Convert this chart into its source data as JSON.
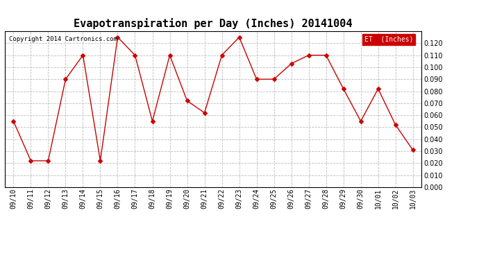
{
  "title": "Evapotranspiration per Day (Inches) 20141004",
  "copyright": "Copyright 2014 Cartronics.com",
  "legend_label": "ET  (Inches)",
  "dates": [
    "09/10",
    "09/11",
    "09/12",
    "09/13",
    "09/14",
    "09/15",
    "09/16",
    "09/17",
    "09/18",
    "09/19",
    "09/20",
    "09/21",
    "09/22",
    "09/23",
    "09/24",
    "09/25",
    "09/26",
    "09/27",
    "09/28",
    "09/29",
    "09/30",
    "10/01",
    "10/02",
    "10/03"
  ],
  "values": [
    0.055,
    0.022,
    0.022,
    0.09,
    0.11,
    0.022,
    0.125,
    0.11,
    0.055,
    0.11,
    0.072,
    0.062,
    0.11,
    0.125,
    0.09,
    0.09,
    0.103,
    0.11,
    0.11,
    0.082,
    0.055,
    0.082,
    0.052,
    0.031
  ],
  "ylim": [
    0.0,
    0.13
  ],
  "yticks": [
    0.0,
    0.01,
    0.02,
    0.03,
    0.04,
    0.05,
    0.06,
    0.07,
    0.08,
    0.09,
    0.1,
    0.11,
    0.12
  ],
  "line_color": "#cc0000",
  "marker": "D",
  "marker_size": 3,
  "grid_color": "#bbbbbb",
  "bg_color": "#ffffff",
  "title_fontsize": 11,
  "tick_fontsize": 7,
  "copyright_fontsize": 6.5,
  "legend_bg": "#cc0000",
  "legend_text_color": "#ffffff",
  "legend_fontsize": 7
}
